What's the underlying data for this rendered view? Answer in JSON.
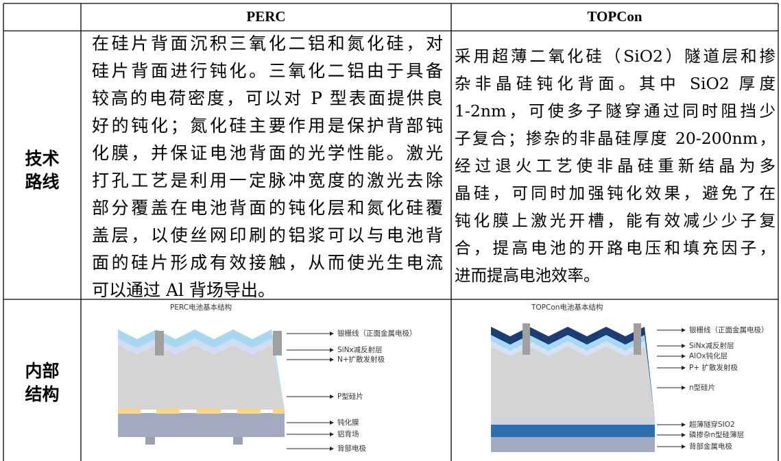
{
  "table": {
    "columns": [
      "PERC",
      "TOPCon"
    ],
    "rows": [
      {
        "label": [
          "技术",
          "路线"
        ],
        "cells": [
          [
            "在硅片背面沉积三氧化二铝和氮化硅，对",
            "硅片背面进行钝化。三氧化二铝由于具备",
            "较高的电荷密度，可以对 P 型表面提供良",
            "好的钝化；氮化硅主要作用是保护背部钝",
            "化膜，并保证电池背面的光学性能。激光",
            "打孔工艺是利用一定脉冲宽度的激光去除",
            "部分覆盖在电池背面的钝化层和氮化硅覆",
            "盖层，以使丝网印刷的铝浆可以与电池背",
            "面的硅片形成有效接触，从而使光生电流",
            "可以通过 Al 背场导出。"
          ],
          [
            "采用超薄二氧化硅（SiO2）隧道层和掺",
            "杂非晶硅钝化背面。其中 SiO2 厚度",
            "1-2nm，可使多子隧穿通过同时阻挡少",
            "子复合；掺杂的非晶硅厚度 20-200nm，",
            "经过退火工艺使非晶硅重新结晶为多",
            "晶硅，可同时加强钝化效果，避免了在",
            "钝化膜上激光开槽，能有效减少少子复",
            "合，提高电池的开路电压和填充因子，",
            "进而提高电池效率。"
          ]
        ]
      },
      {
        "label": [
          "内部",
          "结构"
        ],
        "diagrams": [
          {
            "title": "PERC电池基本结构",
            "labels": [
              "银栅线（正面金属电极）",
              "SiNx减反射层",
              "N+扩散发射极",
              "P型硅片",
              "钝化膜",
              "铝背场",
              "背部电极"
            ]
          },
          {
            "title": "TOPCon电池基本结构",
            "labels": [
              "银栅线（正面金属电极）",
              "SiNx减反射层",
              "AlOx钝化层",
              "P+ 扩散发射极",
              "n型硅片",
              "超薄隧穿SIO2",
              "磷掺杂n型硅薄层",
              "背部金属电极"
            ]
          }
        ]
      }
    ]
  }
}
